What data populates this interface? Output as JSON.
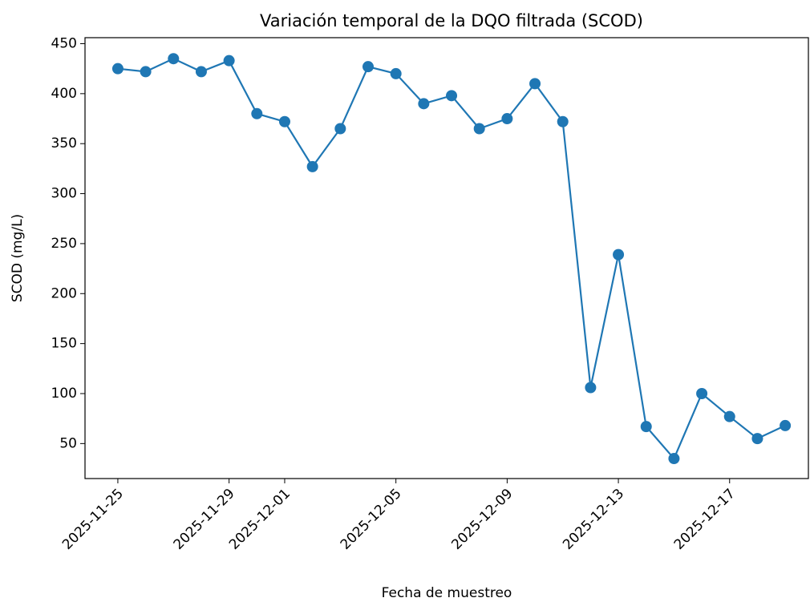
{
  "chart_data": {
    "type": "line",
    "title": "Variación temporal de la DQO filtrada (SCOD)",
    "x_label": "Fecha de muestreo",
    "y_label": "SCOD (mg/L)",
    "x": [
      "2025-11-25",
      "2025-11-26",
      "2025-11-27",
      "2025-11-28",
      "2025-11-29",
      "2025-11-30",
      "2025-12-01",
      "2025-12-02",
      "2025-12-03",
      "2025-12-04",
      "2025-12-05",
      "2025-12-06",
      "2025-12-07",
      "2025-12-08",
      "2025-12-09",
      "2025-12-10",
      "2025-12-11",
      "2025-12-12",
      "2025-12-13",
      "2025-12-14",
      "2025-12-15",
      "2025-12-16",
      "2025-12-17",
      "2025-12-18",
      "2025-12-19"
    ],
    "series": [
      {
        "name": "SCOD",
        "color": "#1f77b4",
        "values": [
          425,
          422,
          435,
          422,
          433,
          380,
          372,
          327,
          365,
          427,
          420,
          390,
          398,
          365,
          375,
          410,
          372,
          106,
          239,
          67,
          35,
          100,
          77,
          55,
          68
        ]
      }
    ],
    "xlim": [
      "2025-11-23T19:40",
      "2025-12-19T20:00"
    ],
    "xticks": [
      "2025-11-25",
      "2025-11-29",
      "2025-12-01",
      "2025-12-05",
      "2025-12-09",
      "2025-12-13",
      "2025-12-17"
    ],
    "ylim": [
      15,
      456
    ],
    "yticks": [
      50,
      100,
      150,
      200,
      250,
      300,
      350,
      400,
      450
    ],
    "grid": false,
    "markers": true
  }
}
